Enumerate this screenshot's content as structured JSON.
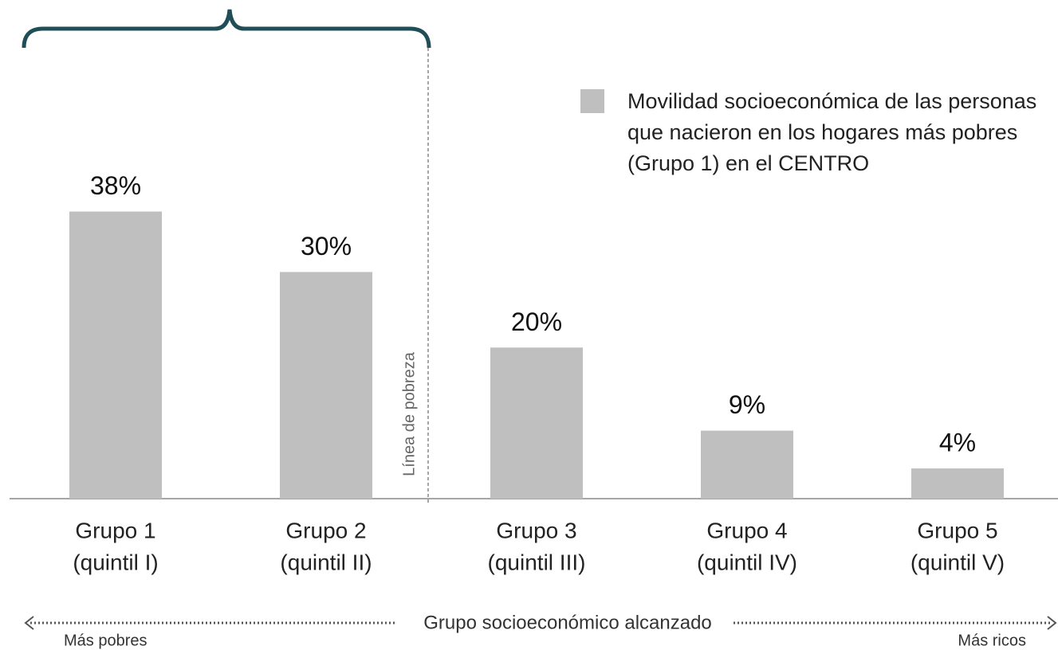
{
  "chart_data": {
    "type": "bar",
    "categories": [
      [
        "Grupo 1",
        "(quintil I)"
      ],
      [
        "Grupo 2",
        "(quintil II)"
      ],
      [
        "Grupo 3",
        "(quintil III)"
      ],
      [
        "Grupo 4",
        "(quintil IV)"
      ],
      [
        "Grupo 5",
        "(quintil V)"
      ]
    ],
    "series": [
      {
        "name": "Movilidad socioeconómica de las personas que nacieron en los hogares más pobres (Grupo 1) en el CENTRO",
        "color": "#bfbfbf",
        "values": [
          38,
          30,
          20,
          9,
          4
        ],
        "value_labels": [
          "38%",
          "30%",
          "20%",
          "9%",
          "4%"
        ]
      }
    ],
    "ylim": [
      0,
      66
    ],
    "x_label": "Grupo socioeconómico alcanzado",
    "annotations": {
      "poverty_line": "Línea de pobreza",
      "left_end": "Más pobres",
      "right_end": "Más ricos"
    }
  }
}
